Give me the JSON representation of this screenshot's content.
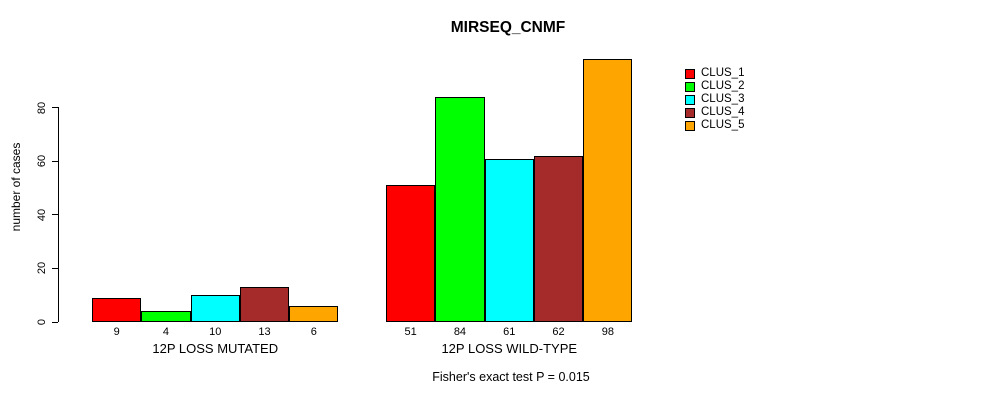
{
  "title": "MIRSEQ_CNMF",
  "annotation": "Fisher's exact test P = 0.015",
  "y_axis": {
    "label": "number of cases",
    "ticks": [
      0,
      20,
      40,
      60,
      80
    ]
  },
  "legend": {
    "entries": [
      {
        "label": "CLUS_1",
        "color": "#FF0000"
      },
      {
        "label": "CLUS_2",
        "color": "#00FF00"
      },
      {
        "label": "CLUS_3",
        "color": "#00FFFF"
      },
      {
        "label": "CLUS_4",
        "color": "#A52A2A"
      },
      {
        "label": "CLUS_5",
        "color": "#FFA500"
      }
    ]
  },
  "chart_data": {
    "type": "bar",
    "title": "MIRSEQ_CNMF",
    "xlabel": "",
    "ylabel": "number of cases",
    "ylim": [
      0,
      98
    ],
    "yticks": [
      0,
      20,
      40,
      60,
      80
    ],
    "grid": false,
    "legend_position": "right-outside",
    "series_names": [
      "CLUS_1",
      "CLUS_2",
      "CLUS_3",
      "CLUS_4",
      "CLUS_5"
    ],
    "series_colors": [
      "#FF0000",
      "#00FF00",
      "#00FFFF",
      "#A52A2A",
      "#FFA500"
    ],
    "groups": [
      {
        "label": "12P LOSS MUTATED",
        "values": [
          9,
          4,
          10,
          13,
          6
        ]
      },
      {
        "label": "12P LOSS WILD-TYPE",
        "values": [
          51,
          84,
          61,
          62,
          98
        ]
      }
    ],
    "bar_value_labels": [
      [
        "9",
        "4",
        "10",
        "13",
        "6"
      ],
      [
        "51",
        "84",
        "61",
        "62",
        "98"
      ]
    ],
    "annotation": "Fisher's exact test P = 0.015"
  }
}
